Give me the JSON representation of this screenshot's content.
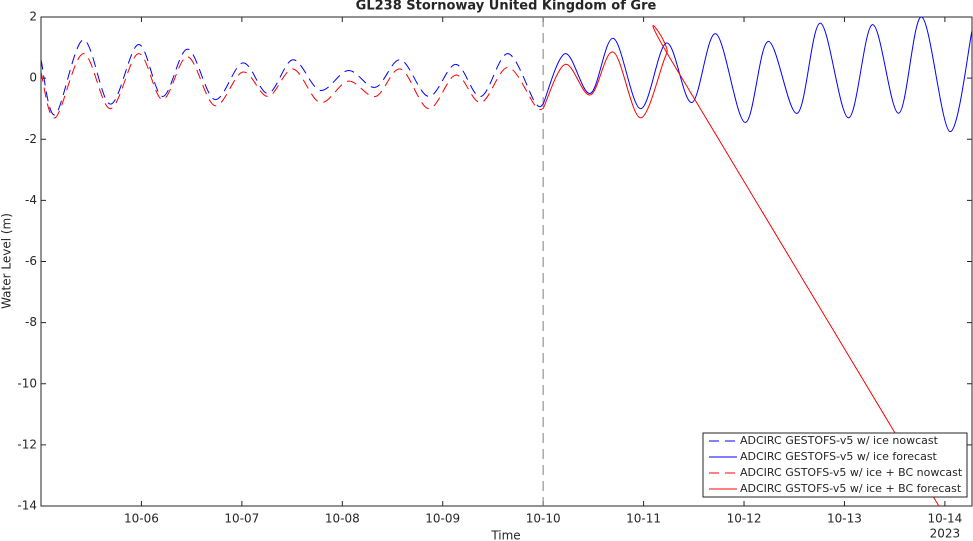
{
  "chart_data": {
    "type": "line",
    "title": "GL238 Stornoway United Kingdom of Gre",
    "x_label": "Time",
    "y_label": "Water Level (m)",
    "x_year_label": "2023",
    "xlim": [
      5,
      14.27
    ],
    "xticks": [
      {
        "value": 6,
        "label": "10-06"
      },
      {
        "value": 7,
        "label": "10-07"
      },
      {
        "value": 8,
        "label": "10-08"
      },
      {
        "value": 9,
        "label": "10-09"
      },
      {
        "value": 10,
        "label": "10-10"
      },
      {
        "value": 11,
        "label": "10-11"
      },
      {
        "value": 12,
        "label": "10-12"
      },
      {
        "value": 13,
        "label": "10-13"
      },
      {
        "value": 14,
        "label": "10-14"
      }
    ],
    "ylim": [
      -14,
      2
    ],
    "yticks": [
      -14,
      -12,
      -10,
      -8,
      -6,
      -4,
      -2,
      0,
      2
    ],
    "vline_x": 10,
    "legend_position": "lower right",
    "series": [
      {
        "name": "ADCIRC GESTOFS-v5 w/ ice nowcast",
        "color": "#0000ff",
        "dashed": true,
        "x": [
          5.0,
          5.14,
          5.42,
          5.69,
          5.97,
          6.21,
          6.46,
          6.73,
          7.01,
          7.26,
          7.51,
          7.78,
          8.06,
          8.33,
          8.58,
          8.86,
          9.13,
          9.38,
          9.65,
          9.92,
          10.0
        ],
        "values": [
          0.6,
          -1.2,
          1.25,
          -0.85,
          1.1,
          -0.6,
          0.95,
          -0.7,
          0.5,
          -0.5,
          0.6,
          -0.4,
          0.25,
          -0.3,
          0.6,
          -0.6,
          0.45,
          -0.6,
          0.8,
          -0.8,
          -0.85
        ]
      },
      {
        "name": "ADCIRC GESTOFS-v5 w/ ice forecast",
        "color": "#0000ff",
        "dashed": false,
        "x": [
          10.0,
          10.22,
          10.47,
          10.7,
          10.97,
          11.23,
          11.48,
          11.72,
          12.01,
          12.24,
          12.53,
          12.76,
          13.04,
          13.28,
          13.54,
          13.77,
          14.05,
          14.27
        ],
        "values": [
          -0.85,
          0.8,
          -0.5,
          1.3,
          -1.0,
          1.15,
          -0.8,
          1.45,
          -1.45,
          1.2,
          -1.15,
          1.8,
          -1.3,
          1.75,
          -1.15,
          2.0,
          -1.75,
          1.55
        ]
      },
      {
        "name": "ADCIRC GSTOFS-v5 w/ ice + BC nowcast",
        "color": "#ff0000",
        "dashed": true,
        "x": [
          5.0,
          5.14,
          5.42,
          5.69,
          5.97,
          6.21,
          6.46,
          6.73,
          7.01,
          7.26,
          7.51,
          7.78,
          8.06,
          8.33,
          8.58,
          8.86,
          9.13,
          9.38,
          9.65,
          9.92,
          10.0
        ],
        "values": [
          0.2,
          -1.3,
          0.8,
          -1.0,
          0.8,
          -0.7,
          0.7,
          -0.9,
          0.2,
          -0.6,
          0.3,
          -0.8,
          -0.1,
          -0.6,
          0.3,
          -1.0,
          0.1,
          -0.8,
          0.35,
          -0.9,
          -1.0
        ]
      },
      {
        "name": "ADCIRC GSTOFS-v5 w/ ice + BC forecast",
        "color": "#ff0000",
        "dashed": false,
        "x": [
          10.0,
          10.22,
          10.47,
          10.7,
          10.97,
          11.23,
          11.3,
          13.94
        ],
        "values": [
          -1.0,
          0.45,
          -0.55,
          0.85,
          -1.3,
          0.8,
          0.45,
          -14
        ]
      }
    ]
  }
}
